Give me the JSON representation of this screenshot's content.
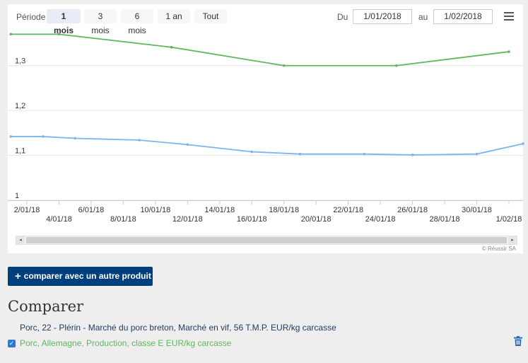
{
  "toolbar": {
    "period_label": "Période",
    "zoom_buttons": [
      {
        "label": "1 mois",
        "active": true
      },
      {
        "label": "3 mois",
        "active": false
      },
      {
        "label": "6 mois",
        "active": false
      },
      {
        "label": "1 an",
        "active": false
      },
      {
        "label": "Tout",
        "active": false
      }
    ],
    "from_label": "Du",
    "from_value": "1/01/2018",
    "to_label": "au",
    "to_value": "1/02/2018",
    "menu_icon": "hamburger-menu-icon"
  },
  "chart_data": {
    "type": "line",
    "ylim": [
      1.0,
      1.38
    ],
    "y_ticks": [
      "1",
      "1,1",
      "1,2",
      "1,3"
    ],
    "y_tick_values": [
      1.0,
      1.1,
      1.2,
      1.3
    ],
    "x_range": [
      "2018-01-02",
      "2018-02-01"
    ],
    "x_tick_labels": [
      {
        "date": "2018-01-02",
        "label": "2/01/18",
        "row": 1
      },
      {
        "date": "2018-01-04",
        "label": "4/01/18",
        "row": 2
      },
      {
        "date": "2018-01-06",
        "label": "6/01/18",
        "row": 1
      },
      {
        "date": "2018-01-08",
        "label": "8/01/18",
        "row": 2
      },
      {
        "date": "2018-01-10",
        "label": "10/01/18",
        "row": 1
      },
      {
        "date": "2018-01-12",
        "label": "12/01/18",
        "row": 2
      },
      {
        "date": "2018-01-14",
        "label": "14/01/18",
        "row": 1
      },
      {
        "date": "2018-01-16",
        "label": "16/01/18",
        "row": 2
      },
      {
        "date": "2018-01-18",
        "label": "18/01/18",
        "row": 1
      },
      {
        "date": "2018-01-20",
        "label": "20/01/18",
        "row": 2
      },
      {
        "date": "2018-01-22",
        "label": "22/01/18",
        "row": 1
      },
      {
        "date": "2018-01-24",
        "label": "24/01/18",
        "row": 2
      },
      {
        "date": "2018-01-26",
        "label": "26/01/18",
        "row": 1
      },
      {
        "date": "2018-01-28",
        "label": "28/01/18",
        "row": 2
      },
      {
        "date": "2018-01-30",
        "label": "30/01/18",
        "row": 1
      },
      {
        "date": "2018-02-01",
        "label": "1/02/18",
        "row": 2
      }
    ],
    "grid": true,
    "series": [
      {
        "color": "#5cb85c",
        "points": [
          {
            "x": "2018-01-01",
            "y": 1.37
          },
          {
            "x": "2018-01-04",
            "y": 1.37
          },
          {
            "x": "2018-01-11",
            "y": 1.341
          },
          {
            "x": "2018-01-18",
            "y": 1.3
          },
          {
            "x": "2018-01-25",
            "y": 1.3
          },
          {
            "x": "2018-02-01",
            "y": 1.331
          }
        ]
      },
      {
        "color": "#7cb5ec",
        "points": [
          {
            "x": "2018-01-01",
            "y": 1.142
          },
          {
            "x": "2018-01-03",
            "y": 1.142
          },
          {
            "x": "2018-01-05",
            "y": 1.138
          },
          {
            "x": "2018-01-09",
            "y": 1.134
          },
          {
            "x": "2018-01-12",
            "y": 1.124
          },
          {
            "x": "2018-01-16",
            "y": 1.108
          },
          {
            "x": "2018-01-19",
            "y": 1.103
          },
          {
            "x": "2018-01-23",
            "y": 1.103
          },
          {
            "x": "2018-01-26",
            "y": 1.101
          },
          {
            "x": "2018-01-30",
            "y": 1.103
          },
          {
            "x": "2018-02-02",
            "y": 1.126
          }
        ]
      }
    ]
  },
  "scrollbar": {
    "left_arrow": "◂",
    "right_arrow": "▸"
  },
  "credits": "© Réussir SA",
  "compare_button": {
    "icon": "+",
    "label": "comparer avec un autre produit"
  },
  "compare_section": {
    "title": "Comparer",
    "items": [
      {
        "label": "Porc, 22 - Plérin - Marché du porc breton, Marché en vif, 56 T.M.P. EUR/kg carcasse",
        "color": "#1f3a5f",
        "checked": null
      },
      {
        "label": "Porc, Allemagne, Production, classe E EUR/kg carcasse",
        "color": "#5cb85c",
        "checked": true
      }
    ],
    "checkbox_mark": "✓",
    "trash_icon": "trash-icon"
  }
}
